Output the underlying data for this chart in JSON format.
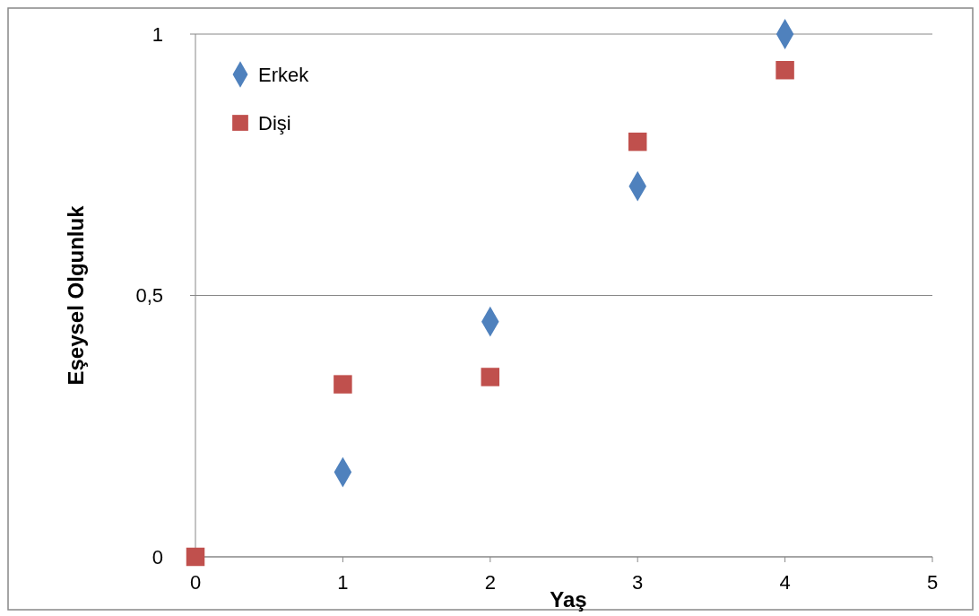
{
  "chart_data": {
    "type": "scatter",
    "xlabel": "Yaş",
    "ylabel": "Eşeysel Olgunluk",
    "xlim": [
      0,
      5
    ],
    "xticks": [
      0,
      1,
      2,
      3,
      4,
      5
    ],
    "ylim": [
      0,
      1
    ],
    "yticks": [
      0,
      {
        "value": 0.5,
        "label": "0,5"
      },
      1
    ],
    "grid": "y",
    "legend": "top left",
    "series": [
      {
        "name": "Erkek",
        "color": "#4f81bd",
        "marker": "diamond",
        "x": [
          1,
          2,
          3,
          4
        ],
        "values": [
          0.162,
          0.45,
          0.709,
          1
        ]
      },
      {
        "name": "Dişi",
        "color": "#c0504d",
        "marker": "square",
        "x": [
          0,
          1,
          2,
          3,
          4
        ],
        "values": [
          0,
          0.33,
          0.344,
          0.794,
          0.931
        ]
      }
    ]
  }
}
